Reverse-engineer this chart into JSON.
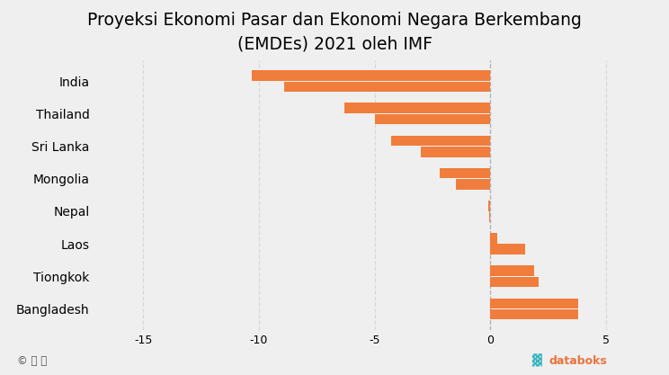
{
  "title": "Proyeksi Ekonomi Pasar dan Ekonomi Negara Berkembang\n(EMDEs) 2021 oleh IMF",
  "categories": [
    "India",
    "Thailand",
    "Sri Lanka",
    "Mongolia",
    "Nepal",
    "Laos",
    "Tiongkok",
    "Bangladesh"
  ],
  "values_top": [
    -10.3,
    -6.3,
    -4.3,
    -2.2,
    -0.1,
    0.3,
    1.9,
    3.8
  ],
  "values_bot": [
    -8.9,
    -5.0,
    -3.0,
    -1.5,
    -0.05,
    1.5,
    2.1,
    3.8
  ],
  "bar_color": "#f07d3c",
  "bg_color": "#efefef",
  "xlim": [
    -17,
    7
  ],
  "xticks": [
    -15,
    -10,
    -5,
    0,
    5
  ],
  "title_fontsize": 13.5,
  "label_fontsize": 10,
  "tick_fontsize": 9,
  "bar_height": 0.32,
  "databoks_text_color": "#e8743b",
  "databoks_icon_color": "#3bb4c1",
  "grid_color": "#d8d8d8",
  "vline_color": "#b0b0b0"
}
